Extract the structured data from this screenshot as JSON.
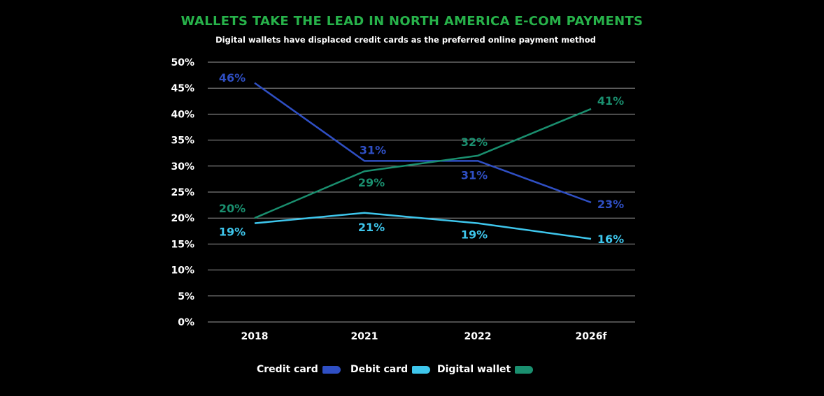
{
  "title": "WALLETS TAKE THE LEAD IN NORTH AMERICA E-COM PAYMENTS",
  "subtitle": "Digital wallets have displaced credit cards as the preferred online payment method",
  "colors": {
    "background": "#000000",
    "title": "#27b24a",
    "credit_card": "#2f4fc4",
    "debit_card": "#3ec6ec",
    "digital_wallet": "#1a8f6f",
    "grid": "#9a9a9a"
  },
  "chart_data": {
    "type": "line",
    "title": "WALLETS TAKE THE LEAD IN NORTH AMERICA E-COM PAYMENTS",
    "subtitle": "Digital wallets have displaced credit cards as the preferred online payment method",
    "categories": [
      "2018",
      "2021",
      "2022",
      "2026f"
    ],
    "series": [
      {
        "name": "Credit card",
        "values": [
          46,
          31,
          31,
          23
        ],
        "labels": [
          "46%",
          "31%",
          "31%",
          "23%"
        ]
      },
      {
        "name": "Debit card",
        "values": [
          19,
          21,
          19,
          16
        ],
        "labels": [
          "19%",
          "21%",
          "19%",
          "16%"
        ]
      },
      {
        "name": "Digital wallet",
        "values": [
          20,
          29,
          32,
          41
        ],
        "labels": [
          "20%",
          "29%",
          "32%",
          "41%"
        ]
      }
    ],
    "ylim": [
      0,
      50
    ],
    "yticks": [
      "0%",
      "5%",
      "10%",
      "15%",
      "20%",
      "25%",
      "30%",
      "35%",
      "40%",
      "45%",
      "50%"
    ],
    "grid": true,
    "legend_position": "bottom-center",
    "xlabel": "",
    "ylabel": ""
  },
  "legend": {
    "items": [
      {
        "label": "Credit card",
        "color": "#2f4fc4"
      },
      {
        "label": "Debit card",
        "color": "#3ec6ec"
      },
      {
        "label": "Digital wallet",
        "color": "#1a8f6f"
      }
    ]
  }
}
